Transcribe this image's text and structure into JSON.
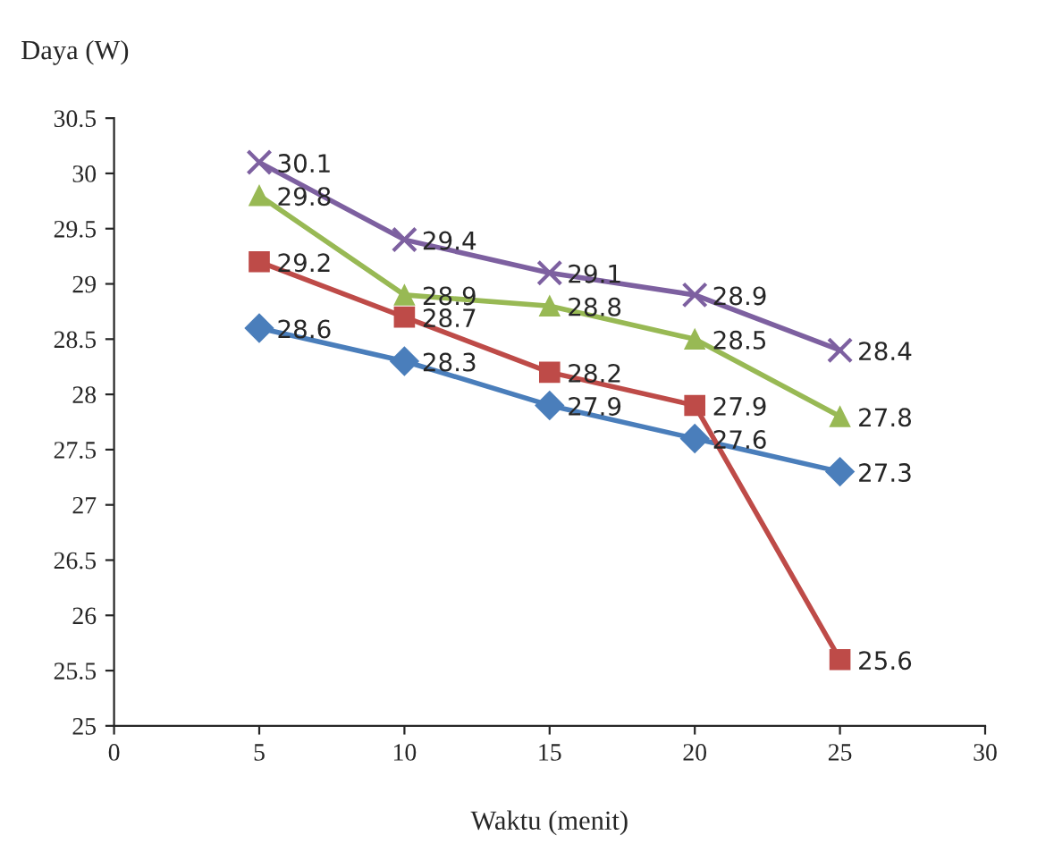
{
  "chart_data": {
    "type": "line",
    "xlabel": "Waktu (menit)",
    "ylabel": "Daya (W)",
    "x": [
      5,
      10,
      15,
      20,
      25
    ],
    "series": [
      {
        "color": "#4a7ebb",
        "marker": "diamond",
        "values": [
          28.6,
          28.3,
          27.9,
          27.6,
          27.3
        ]
      },
      {
        "color": "#be4b48",
        "marker": "square",
        "values": [
          29.2,
          28.7,
          28.2,
          27.9,
          25.6
        ]
      },
      {
        "color": "#98b954",
        "marker": "triangle",
        "values": [
          29.8,
          28.9,
          28.8,
          28.5,
          27.8
        ]
      },
      {
        "color": "#7d60a0",
        "marker": "cross",
        "values": [
          30.1,
          29.4,
          29.1,
          28.9,
          28.4
        ]
      }
    ],
    "xlim": [
      0,
      30
    ],
    "xticks": [
      0,
      5,
      10,
      15,
      20,
      25,
      30
    ],
    "ylim": [
      25,
      30.5
    ],
    "yticks": [
      25,
      25.5,
      26,
      26.5,
      27,
      27.5,
      28,
      28.5,
      29,
      29.5,
      30,
      30.5
    ],
    "data_labels": true,
    "grid": false,
    "legend": false,
    "line_style": "solid"
  }
}
